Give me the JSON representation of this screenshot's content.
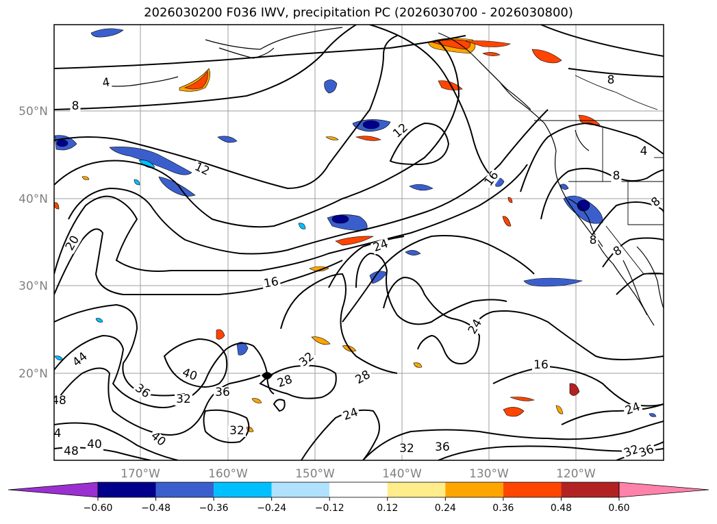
{
  "title": "2026030200 F036 IWV, precipitation PC (2026030700 - 2026030800)",
  "map": {
    "lat_labels": [
      "50°N",
      "40°N",
      "30°N",
      "20°N"
    ],
    "lon_labels": [
      "170°W",
      "160°W",
      "150°W",
      "140°W",
      "130°W",
      "120°W"
    ]
  },
  "contour_labels": [
    {
      "text": "4"
    },
    {
      "text": "8"
    },
    {
      "text": "12"
    },
    {
      "text": "12"
    },
    {
      "text": "16"
    },
    {
      "text": "20"
    },
    {
      "text": "16"
    },
    {
      "text": "24"
    },
    {
      "text": "24"
    },
    {
      "text": "28"
    },
    {
      "text": "32"
    },
    {
      "text": "28"
    },
    {
      "text": "40"
    },
    {
      "text": "36"
    },
    {
      "text": "36"
    },
    {
      "text": "32"
    },
    {
      "text": "44"
    },
    {
      "text": "48"
    },
    {
      "text": "32"
    },
    {
      "text": "40"
    },
    {
      "text": "40"
    },
    {
      "text": "48"
    },
    {
      "text": "4"
    },
    {
      "text": "24"
    },
    {
      "text": "32"
    },
    {
      "text": "36"
    },
    {
      "text": "16"
    },
    {
      "text": "24"
    },
    {
      "text": "32"
    },
    {
      "text": "36"
    },
    {
      "text": "8"
    },
    {
      "text": "4"
    },
    {
      "text": "8"
    },
    {
      "text": "8"
    },
    {
      "text": "8"
    },
    {
      "text": "8"
    }
  ],
  "colorbar": {
    "colors": [
      "#9b30d0",
      "#00008b",
      "#3a5fcd",
      "#00bfff",
      "#b0e2ff",
      "#ffffff",
      "#ffec8b",
      "#ffa500",
      "#ff4500",
      "#b22222",
      "#ff82ab"
    ],
    "ticks": [
      "−0.60",
      "−0.48",
      "−0.36",
      "−0.24",
      "−0.12",
      "0.12",
      "0.24",
      "0.36",
      "0.48",
      "0.60"
    ]
  }
}
